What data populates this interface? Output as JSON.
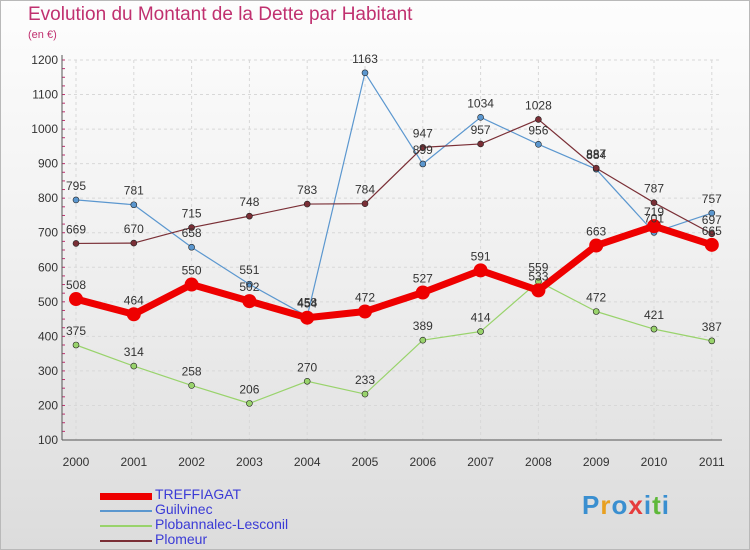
{
  "title": "Evolution du Montant de la Dette par Habitant",
  "subtitle": "(en €)",
  "logo": {
    "letters": [
      "P",
      "r",
      "o",
      "x",
      "i",
      "t",
      "i"
    ],
    "colors": [
      "#3a8fd0",
      "#e8a020",
      "#3a8fd0",
      "#e63c3c",
      "#3a8fd0",
      "#5fb83a",
      "#3a8fd0"
    ]
  },
  "chart_data": {
    "type": "line",
    "x": [
      "2000",
      "2001",
      "2002",
      "2003",
      "2004",
      "2005",
      "2006",
      "2007",
      "2008",
      "2009",
      "2010",
      "2011"
    ],
    "ylim": [
      100,
      1200
    ],
    "yticks": [
      100,
      200,
      300,
      400,
      500,
      600,
      700,
      800,
      900,
      1000,
      1100,
      1200
    ],
    "grid": true,
    "legend_position": "bottom-left",
    "series": [
      {
        "name": "TREFFIAGAT",
        "color": "#ee0000",
        "width": 7,
        "marker": 7,
        "values": [
          508,
          464,
          550,
          502,
          454,
          472,
          527,
          591,
          533,
          663,
          719,
          665
        ]
      },
      {
        "name": "Guilvinec",
        "color": "#5b97cf",
        "width": 1.2,
        "marker": 3,
        "values": [
          795,
          781,
          658,
          551,
          458,
          1163,
          899,
          1034,
          956,
          884,
          701,
          757
        ]
      },
      {
        "name": "Plobannalec-Lesconil",
        "color": "#99d36c",
        "width": 1.2,
        "marker": 3,
        "values": [
          375,
          314,
          258,
          206,
          270,
          233,
          389,
          414,
          559,
          472,
          421,
          387
        ]
      },
      {
        "name": "Plomeur",
        "color": "#7a2f36",
        "width": 1.2,
        "marker": 3,
        "values": [
          669,
          670,
          715,
          748,
          783,
          784,
          947,
          957,
          1028,
          887,
          787,
          697
        ]
      }
    ]
  }
}
